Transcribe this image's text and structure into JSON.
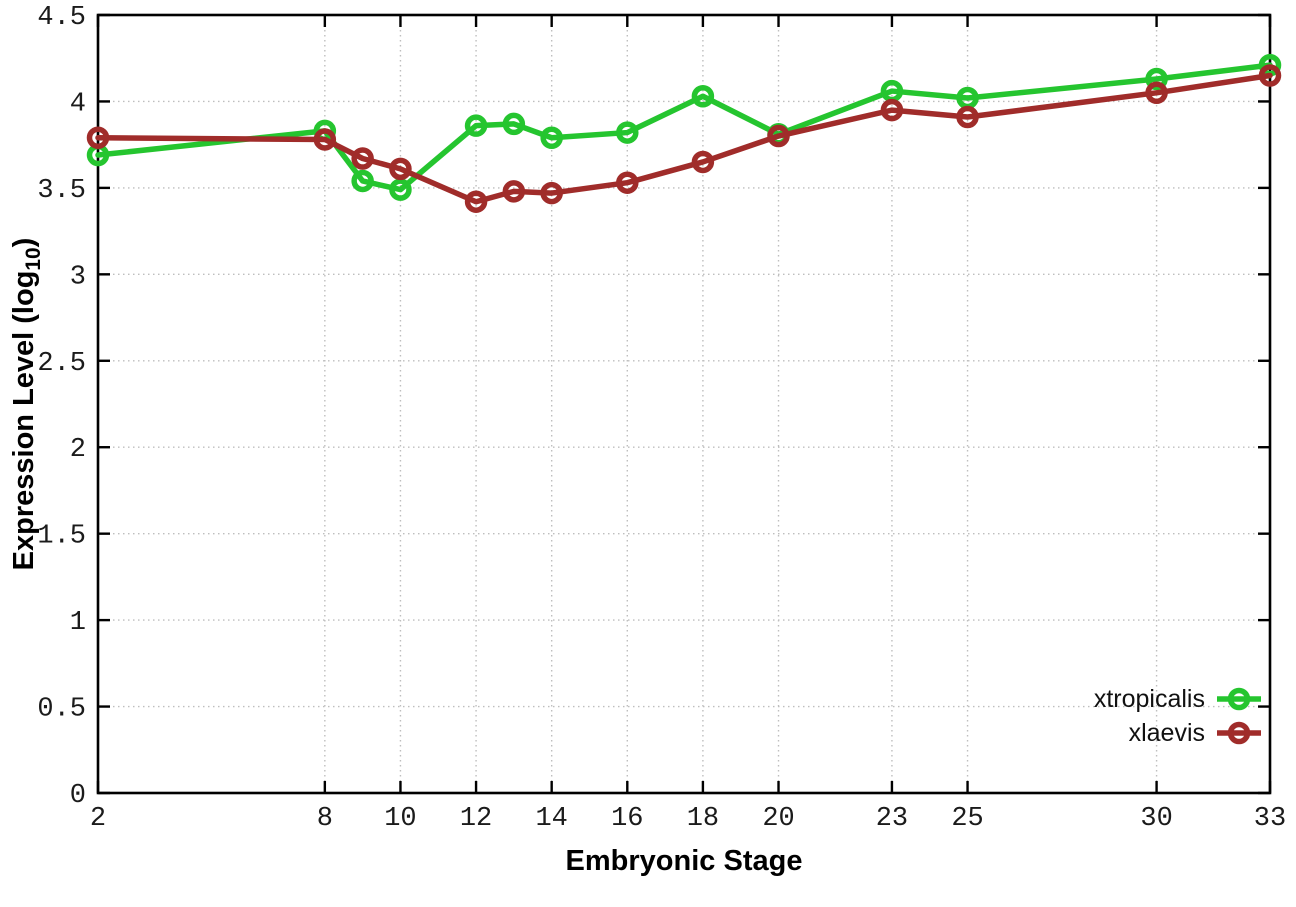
{
  "chart_data": {
    "type": "line",
    "title": "",
    "xlabel": "Embryonic Stage",
    "ylabel": "Expression Level (log10)",
    "ylabel_parts": {
      "main": "Expression Level (log",
      "sub": "10",
      "close": ")"
    },
    "xlim": [
      2,
      33
    ],
    "ylim": [
      0,
      4.5
    ],
    "grid": true,
    "legend_position": "bottom-right-inside",
    "x": [
      2,
      8,
      9,
      10,
      12,
      13,
      14,
      16,
      18,
      20,
      23,
      25,
      30,
      33
    ],
    "xticks": [
      2,
      8,
      10,
      12,
      14,
      16,
      18,
      20,
      23,
      25,
      30,
      33
    ],
    "xtick_labels": [
      "2",
      "8",
      "10",
      "12",
      "14",
      "16",
      "18",
      "20",
      "23",
      "25",
      "30",
      "33"
    ],
    "yticks": [
      0,
      0.5,
      1,
      1.5,
      2,
      2.5,
      3,
      3.5,
      4,
      4.5
    ],
    "ytick_labels": [
      "0",
      "0.5",
      "1",
      "1.5",
      "2",
      "2.5",
      "3",
      "3.5",
      "4",
      "4.5"
    ],
    "series": [
      {
        "name": "xtropicalis",
        "color": "#25c52f",
        "values": [
          3.69,
          3.83,
          3.54,
          3.49,
          3.86,
          3.87,
          3.79,
          3.82,
          4.03,
          3.81,
          4.06,
          4.02,
          4.13,
          4.21
        ]
      },
      {
        "name": "xlaevis",
        "color": "#a02c2a",
        "values": [
          3.79,
          3.78,
          3.67,
          3.61,
          3.42,
          3.48,
          3.47,
          3.53,
          3.65,
          3.8,
          3.95,
          3.91,
          4.05,
          4.15
        ]
      }
    ]
  }
}
